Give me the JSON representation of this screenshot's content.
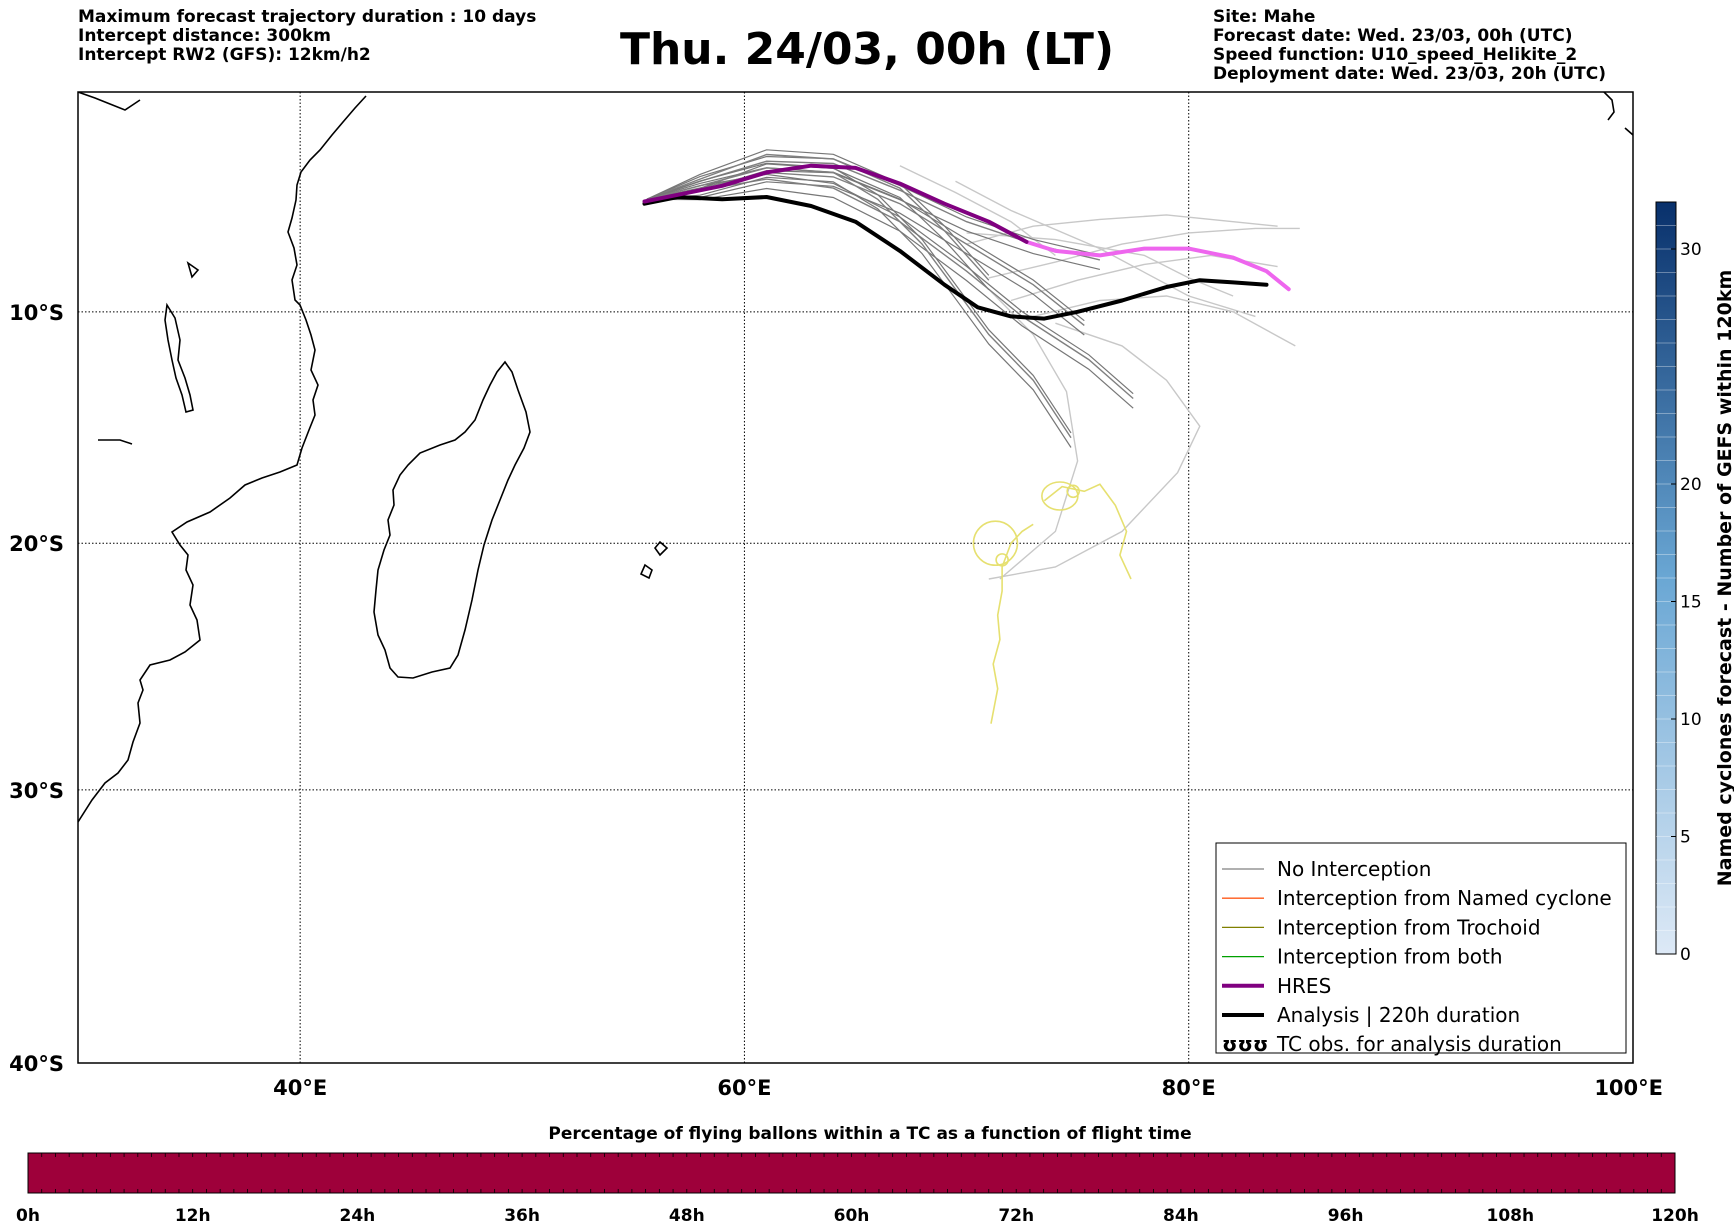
{
  "header": {
    "left": [
      "Maximum forecast trajectory duration : 10 days",
      "Intercept distance: 300km",
      "Intercept RW2 (GFS):  12km/h2"
    ],
    "title": "Thu. 24/03, 00h (LT)",
    "right": [
      "Site: Mahe",
      "Forecast date: Wed. 23/03, 00h (UTC)",
      "Speed function: U10_speed_Helikite_2",
      "Deployment date: Wed. 23/03, 20h (UTC)"
    ]
  },
  "map": {
    "lon_range": [
      30,
      100
    ],
    "lat_range": [
      -40,
      -0.2
    ],
    "lon_ticks": [
      {
        "value": 40,
        "label": "40°E"
      },
      {
        "value": 60,
        "label": "60°E"
      },
      {
        "value": 80,
        "label": "80°E"
      },
      {
        "value": 100,
        "label": "100°E"
      }
    ],
    "lat_ticks": [
      {
        "value": -10,
        "label": "10°S"
      },
      {
        "value": -20,
        "label": "20°S"
      },
      {
        "value": -30,
        "label": "30°S"
      },
      {
        "value": -40,
        "label": "40°S"
      }
    ]
  },
  "legend": {
    "items": [
      {
        "label": "No Interception",
        "color": "#808080",
        "style": "thin"
      },
      {
        "label": "Interception from Named cyclone",
        "color": "#ff5a1a",
        "style": "thin"
      },
      {
        "label": "Interception from Trochoid",
        "color": "#808000",
        "style": "thin"
      },
      {
        "label": "Interception from both",
        "color": "#00a000",
        "style": "thin"
      },
      {
        "label": "HRES",
        "color": "#800080",
        "style": "thick"
      },
      {
        "label": "Analysis | 220h duration",
        "color": "#000000",
        "style": "thick"
      },
      {
        "label": "TC obs. for analysis duration",
        "color": "#000000",
        "style": "symbol",
        "symbol": "ʊʊʊ"
      }
    ]
  },
  "colorbar_right": {
    "title": "Named cyclones forecast - Number of GEFS within 120km",
    "min": 0,
    "max": 32,
    "tick_labels": [
      "0",
      "5",
      "10",
      "15",
      "20",
      "30"
    ],
    "tick_values": [
      0,
      5,
      10,
      15,
      20,
      30
    ],
    "color_low": "#dde9f6",
    "color_high": "#08306b"
  },
  "colorbar_bottom": {
    "title": "Percentage of flying ballons within a TC as a function of flight time",
    "tick_labels": [
      "0h",
      "12h",
      "24h",
      "36h",
      "48h",
      "60h",
      "72h",
      "84h",
      "96h",
      "108h",
      "120h"
    ],
    "fill_color": "#9e003a"
  },
  "chart_data": {
    "type": "map-trajectories",
    "hres": {
      "color": "#800080",
      "path": [
        [
          55.5,
          -5.1
        ],
        [
          57,
          -4.8
        ],
        [
          59,
          -4.4
        ],
        [
          61,
          -3.8
        ],
        [
          63,
          -3.5
        ],
        [
          65,
          -3.6
        ],
        [
          67,
          -4.3
        ],
        [
          69,
          -5.2
        ],
        [
          71,
          -6.0
        ],
        [
          72.7,
          -6.9
        ]
      ],
      "continuation_color": "#ee66ee",
      "continuation": [
        [
          72.7,
          -6.9
        ],
        [
          74,
          -7.3
        ],
        [
          76,
          -7.5
        ],
        [
          78,
          -7.2
        ],
        [
          80,
          -7.2
        ],
        [
          82,
          -7.6
        ],
        [
          83.5,
          -8.2
        ],
        [
          84.5,
          -9.0
        ]
      ]
    },
    "analysis": {
      "color": "#000000",
      "path": [
        [
          55.5,
          -5.2
        ],
        [
          57,
          -4.9
        ],
        [
          59,
          -5.0
        ],
        [
          61,
          -4.9
        ],
        [
          63,
          -5.3
        ],
        [
          65,
          -6.0
        ],
        [
          67,
          -7.3
        ],
        [
          69,
          -8.8
        ],
        [
          70.5,
          -9.8
        ],
        [
          72,
          -10.2
        ],
        [
          73.5,
          -10.3
        ],
        [
          75,
          -10.0
        ],
        [
          77,
          -9.5
        ],
        [
          79,
          -8.9
        ],
        [
          80.5,
          -8.6
        ],
        [
          82,
          -8.7
        ],
        [
          83.5,
          -8.8
        ]
      ]
    },
    "ensemble_gray": [
      [
        [
          55.6,
          -5.0
        ],
        [
          58,
          -4.2
        ],
        [
          61,
          -3.3
        ],
        [
          64,
          -3.4
        ],
        [
          67,
          -4.6
        ],
        [
          70,
          -6.0
        ],
        [
          73,
          -7.0
        ],
        [
          76,
          -7.7
        ]
      ],
      [
        [
          55.6,
          -5.0
        ],
        [
          58,
          -4.5
        ],
        [
          61,
          -3.8
        ],
        [
          64,
          -4.0
        ],
        [
          67,
          -5.2
        ],
        [
          70,
          -7.0
        ],
        [
          73,
          -8.8
        ],
        [
          75.3,
          -10.6
        ]
      ],
      [
        [
          55.6,
          -5.0
        ],
        [
          58,
          -4.6
        ],
        [
          61,
          -4.1
        ],
        [
          64,
          -4.5
        ],
        [
          67,
          -6.0
        ],
        [
          70,
          -8.2
        ],
        [
          72.5,
          -10.2
        ],
        [
          75.5,
          -12.1
        ],
        [
          77.5,
          -13.8
        ]
      ],
      [
        [
          55.6,
          -5.0
        ],
        [
          58,
          -4.1
        ],
        [
          61,
          -3.0
        ],
        [
          64,
          -3.2
        ],
        [
          67,
          -4.5
        ],
        [
          69,
          -6.4
        ],
        [
          71,
          -8.6
        ]
      ],
      [
        [
          55.6,
          -5.0
        ],
        [
          58,
          -4.4
        ],
        [
          61,
          -3.6
        ],
        [
          64,
          -3.8
        ],
        [
          66,
          -5.0
        ],
        [
          68,
          -7.0
        ],
        [
          69.5,
          -9.0
        ],
        [
          71,
          -11.0
        ],
        [
          73,
          -13.0
        ],
        [
          74.7,
          -15.5
        ]
      ]
    ],
    "ensemble_light": [
      [
        [
          70,
          -7.0
        ],
        [
          73,
          -6.2
        ],
        [
          76,
          -5.9
        ],
        [
          79,
          -5.7
        ],
        [
          82,
          -6.0
        ],
        [
          84,
          -6.2
        ]
      ],
      [
        [
          71,
          -8.5
        ],
        [
          74,
          -7.8
        ],
        [
          77,
          -7.0
        ],
        [
          80,
          -6.5
        ],
        [
          83,
          -6.3
        ],
        [
          85,
          -6.3
        ]
      ],
      [
        [
          72,
          -9.5
        ],
        [
          75,
          -8.6
        ],
        [
          78,
          -7.9
        ],
        [
          81,
          -7.5
        ],
        [
          84,
          -8.0
        ]
      ],
      [
        [
          73,
          -10.2
        ],
        [
          76,
          -9.5
        ],
        [
          79,
          -9.3
        ],
        [
          82,
          -10.0
        ],
        [
          84.8,
          -11.5
        ]
      ],
      [
        [
          70,
          -6.5
        ],
        [
          74,
          -6.8
        ],
        [
          78,
          -7.5
        ],
        [
          80,
          -8.5
        ],
        [
          82,
          -9.3
        ]
      ],
      [
        [
          71,
          -9.0
        ],
        [
          73,
          -11.0
        ],
        [
          74.5,
          -13.5
        ],
        [
          75,
          -16.5
        ],
        [
          74,
          -19.5
        ],
        [
          71.5,
          -21.5
        ]
      ],
      [
        [
          74,
          -10.5
        ],
        [
          77,
          -11.5
        ],
        [
          79,
          -13.0
        ],
        [
          80.5,
          -15.0
        ],
        [
          79.5,
          -17.0
        ],
        [
          77,
          -19.5
        ],
        [
          74,
          -21.0
        ],
        [
          71,
          -21.5
        ]
      ],
      [
        [
          69.5,
          -4.2
        ],
        [
          72,
          -5.5
        ],
        [
          76,
          -7.2
        ],
        [
          80,
          -9.3
        ],
        [
          83,
          -10.2
        ]
      ],
      [
        [
          67,
          -3.5
        ],
        [
          69.5,
          -4.7
        ],
        [
          72,
          -6.0
        ],
        [
          74,
          -7.5
        ]
      ]
    ],
    "tc_tracks": {
      "color": "#e6e070",
      "tracks": [
        [
          [
            71.1,
            -27.4
          ],
          [
            71.4,
            -26.0
          ],
          [
            71.2,
            -25.0
          ],
          [
            71.5,
            -24.0
          ],
          [
            71.4,
            -23.0
          ],
          [
            71.6,
            -22.0
          ],
          [
            71.6,
            -21.0
          ],
          [
            72,
            -20.0
          ],
          [
            72.5,
            -19.5
          ],
          [
            73,
            -19.2
          ]
        ],
        [
          [
            73.5,
            -18.2
          ],
          [
            74.3,
            -17.6
          ],
          [
            75.3,
            -17.8
          ],
          [
            76,
            -17.5
          ],
          [
            76.7,
            -18.4
          ],
          [
            77.2,
            -19.5
          ],
          [
            76.9,
            -20.5
          ],
          [
            77.4,
            -21.5
          ]
        ]
      ]
    }
  }
}
